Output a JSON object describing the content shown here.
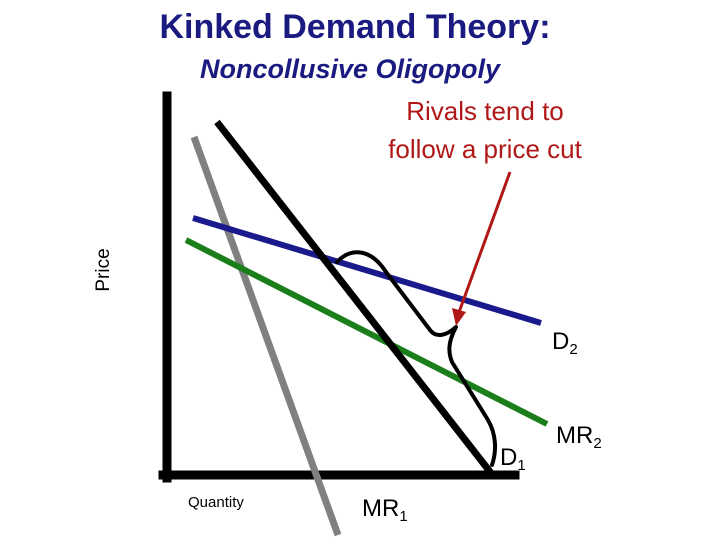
{
  "title": "Kinked Demand Theory:",
  "subtitle": "Noncollusive Oligopoly",
  "annotation": {
    "line1": "Rivals tend to",
    "line2": "follow a price cut"
  },
  "axes": {
    "y_label": "Price",
    "x_label": "Quantity"
  },
  "curves": {
    "d2": {
      "name": "D",
      "subscript": "2",
      "color": "#1a1a8c"
    },
    "d1": {
      "name": "D",
      "subscript": "1",
      "color": "#000000"
    },
    "mr2": {
      "name": "MR",
      "subscript": "2",
      "color": "#1a7f1a"
    },
    "mr1": {
      "name": "MR",
      "subscript": "1",
      "color": "#808080"
    }
  },
  "colors": {
    "heading": "#1a1a80",
    "annotation": "#b01818",
    "axis": "#000000"
  }
}
